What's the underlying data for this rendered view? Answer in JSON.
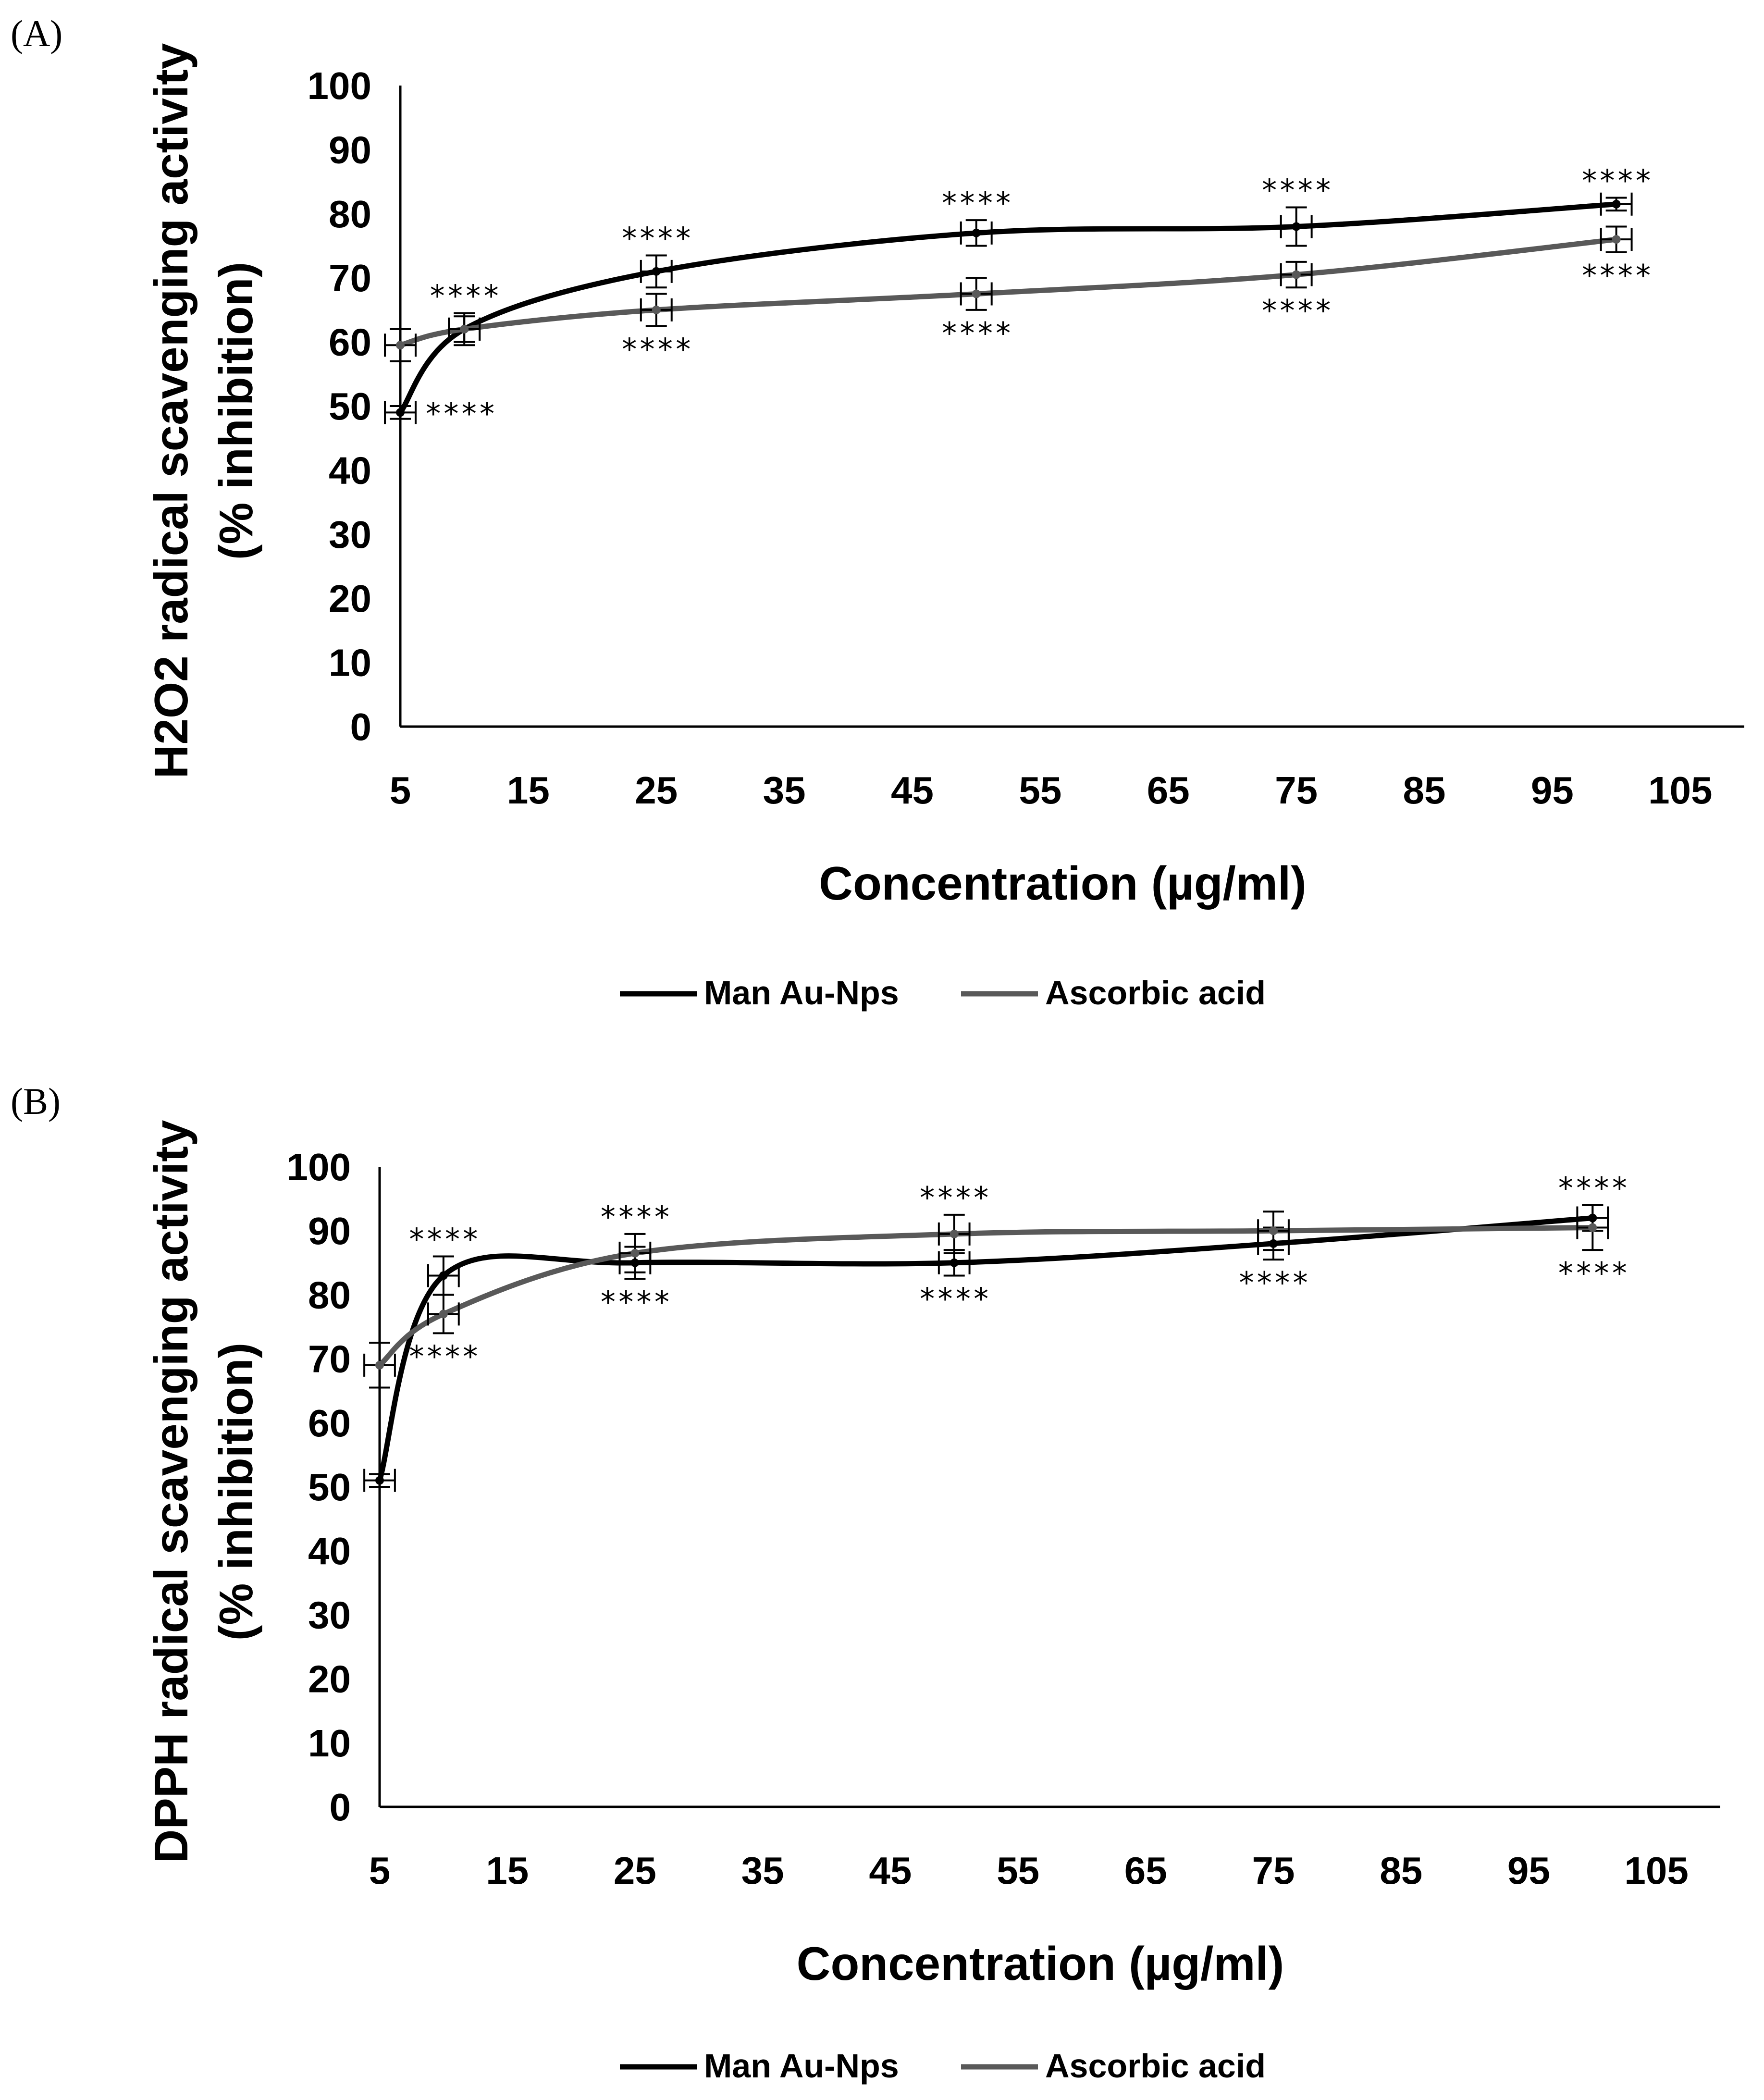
{
  "chart_data": [
    {
      "type": "line",
      "panel_label": "(A)",
      "ylabel_line1": "H2O2 radical scavenging activity",
      "ylabel_line2": "(% inhibition)",
      "xlabel": "Concentration (µg/ml)",
      "xlim": [
        5,
        110
      ],
      "ylim": [
        0,
        100
      ],
      "xticks": [
        5,
        15,
        25,
        35,
        45,
        55,
        65,
        75,
        85,
        95,
        105
      ],
      "yticks": [
        0,
        10,
        20,
        30,
        40,
        50,
        60,
        70,
        80,
        90,
        100
      ],
      "legend_position": "bottom",
      "series": [
        {
          "name": "Man Au-Nps",
          "color": "#000000",
          "x": [
            5,
            10,
            25,
            50,
            75,
            100
          ],
          "y": [
            49,
            62,
            71,
            77,
            78,
            81.5
          ],
          "err": [
            1,
            2.5,
            2.5,
            2,
            3,
            1
          ],
          "sig": [
            "****",
            "****",
            "****",
            "****",
            "****",
            "****"
          ],
          "sig_pos": [
            "right",
            "above",
            "above",
            "above",
            "above",
            "above"
          ]
        },
        {
          "name": "Ascorbic acid",
          "color": "#595959",
          "x": [
            5,
            10,
            25,
            50,
            75,
            100
          ],
          "y": [
            59.5,
            62,
            65,
            67.5,
            70.5,
            76
          ],
          "err": [
            2.5,
            2,
            2.5,
            2.5,
            2,
            2
          ],
          "sig": [
            "",
            "",
            "****",
            "****",
            "****",
            "****"
          ],
          "sig_pos": [
            "",
            "",
            "below",
            "below",
            "below",
            "below"
          ]
        }
      ]
    },
    {
      "type": "line",
      "panel_label": "(B)",
      "ylabel_line1": "DPPH radical scavenging activity",
      "ylabel_line2": "(% inhibition)",
      "xlabel": "Concentration (µg/ml)",
      "xlim": [
        5,
        110
      ],
      "ylim": [
        0,
        100
      ],
      "xticks": [
        5,
        15,
        25,
        35,
        45,
        55,
        65,
        75,
        85,
        95,
        105
      ],
      "yticks": [
        0,
        10,
        20,
        30,
        40,
        50,
        60,
        70,
        80,
        90,
        100
      ],
      "legend_position": "bottom",
      "series": [
        {
          "name": "Man Au-Nps",
          "color": "#000000",
          "x": [
            5,
            10,
            25,
            50,
            75,
            100
          ],
          "y": [
            51,
            83,
            85,
            85,
            88,
            92
          ],
          "err": [
            1,
            3,
            2.5,
            2,
            2.5,
            2
          ],
          "sig": [
            "",
            "****",
            "****",
            "****",
            "****",
            "****"
          ],
          "sig_pos": [
            "",
            "above",
            "below",
            "below",
            "below",
            "above"
          ]
        },
        {
          "name": "Ascorbic acid",
          "color": "#595959",
          "x": [
            5,
            10,
            25,
            50,
            75,
            100
          ],
          "y": [
            69,
            77,
            86.5,
            89.5,
            90,
            90.5
          ],
          "err": [
            3.5,
            3,
            3,
            3,
            3,
            3.5
          ],
          "sig": [
            "",
            "****",
            "****",
            "****",
            "",
            "****"
          ],
          "sig_pos": [
            "",
            "below",
            "above",
            "above",
            "",
            "below"
          ]
        }
      ]
    }
  ]
}
